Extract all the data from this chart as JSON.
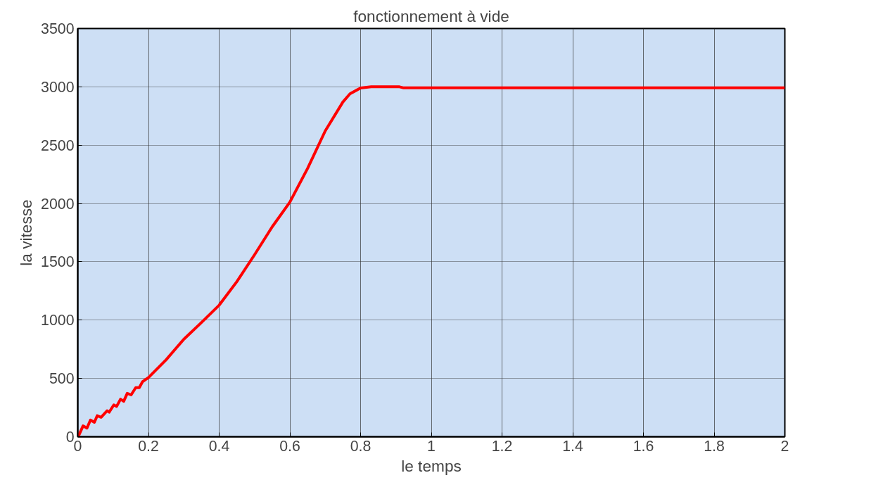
{
  "chart_data": {
    "type": "line",
    "title": "fonctionnement à vide",
    "xlabel": "le temps",
    "ylabel": "la vitesse",
    "series": [
      {
        "color": "#ff0000",
        "x": [
          0,
          0.004,
          0.015,
          0.026,
          0.036,
          0.047,
          0.055,
          0.066,
          0.083,
          0.089,
          0.102,
          0.11,
          0.121,
          0.13,
          0.14,
          0.151,
          0.164,
          0.174,
          0.183,
          0.2,
          0.25,
          0.3,
          0.35,
          0.4,
          0.45,
          0.5,
          0.55,
          0.6,
          0.65,
          0.7,
          0.75,
          0.77,
          0.8,
          0.83,
          0.91,
          0.92,
          2.0
        ],
        "values": [
          0,
          19,
          93,
          74,
          143,
          124,
          180,
          167,
          223,
          211,
          273,
          260,
          322,
          304,
          372,
          359,
          421,
          421,
          471,
          508,
          660,
          836,
          980,
          1128,
          1330,
          1560,
          1800,
          2012,
          2300,
          2622,
          2870,
          2940,
          2990,
          3000,
          3000,
          2992,
          2992
        ]
      }
    ],
    "xlim": [
      0,
      2
    ],
    "ylim": [
      0,
      3500
    ],
    "xticks": [
      0,
      0.2,
      0.4,
      0.6,
      0.8,
      1,
      1.2,
      1.4,
      1.6,
      1.8,
      2
    ],
    "yticks": [
      0,
      500,
      1000,
      1500,
      2000,
      2500,
      3000,
      3500
    ],
    "grid": true,
    "marker": "none",
    "line_style": "solid"
  }
}
